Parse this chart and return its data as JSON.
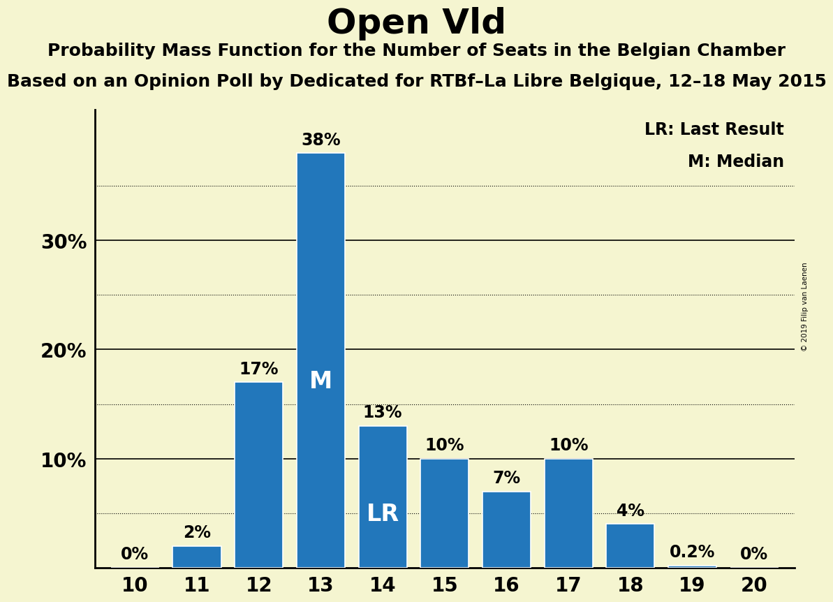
{
  "title": "Open Vld",
  "subtitle1": "Probability Mass Function for the Number of Seats in the Belgian Chamber",
  "subtitle2": "Based on an Opinion Poll by Dedicated for RTBf–La Libre Belgique, 12–18 May 2015",
  "watermark": "© 2019 Filip van Laenen",
  "categories": [
    10,
    11,
    12,
    13,
    14,
    15,
    16,
    17,
    18,
    19,
    20
  ],
  "values": [
    0.0,
    2.0,
    17.0,
    38.0,
    13.0,
    10.0,
    7.0,
    10.0,
    4.0,
    0.2,
    0.0
  ],
  "labels": [
    "0%",
    "2%",
    "17%",
    "38%",
    "13%",
    "10%",
    "7%",
    "10%",
    "4%",
    "0.2%",
    "0%"
  ],
  "bar_color": "#2277bb",
  "background_color": "#f5f5d0",
  "median_bar": 13,
  "lr_bar": 14,
  "legend_lr": "LR: Last Result",
  "legend_m": "M: Median",
  "ylim": [
    0,
    42
  ],
  "yticks": [
    10,
    20,
    30
  ],
  "ytick_labels": [
    "10%",
    "20%",
    "30%"
  ],
  "dotted_lines": [
    5,
    15,
    25,
    35
  ],
  "title_fontsize": 36,
  "subtitle_fontsize": 18,
  "bar_label_fontsize": 17,
  "axis_label_fontsize": 20,
  "legend_fontsize": 17,
  "bar_width": 0.78,
  "inside_label_fontsize": 24
}
